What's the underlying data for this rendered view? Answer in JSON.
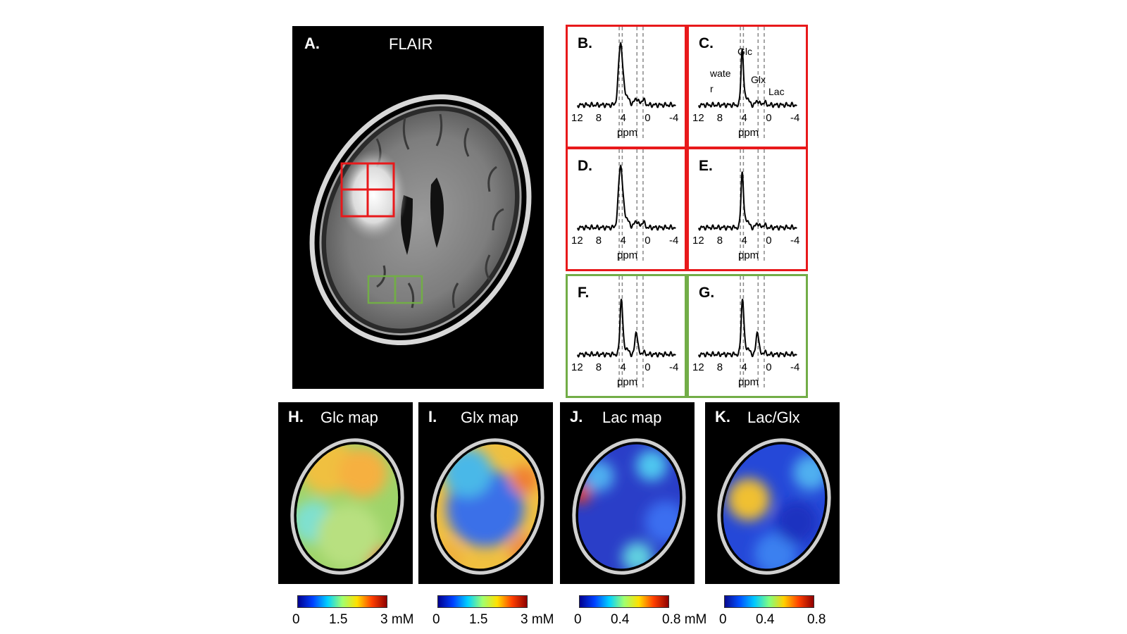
{
  "panel_a": {
    "label": "A.",
    "title": "FLAIR"
  },
  "spectra": [
    {
      "label": "B.",
      "roi": "red",
      "ticks": [
        "12",
        "8",
        "4",
        "0",
        "-4"
      ],
      "xlabel": "ppm",
      "shape": "tumor"
    },
    {
      "label": "C.",
      "roi": "red",
      "ticks": [
        "12",
        "8",
        "4",
        "0",
        "-4"
      ],
      "xlabel": "ppm",
      "shape": "tumor_sharp",
      "annotations": {
        "water_1": "wate",
        "water_2": "r",
        "glc": "Glc",
        "glx": "Glx",
        "lac": "Lac"
      }
    },
    {
      "label": "D.",
      "roi": "red",
      "ticks": [
        "12",
        "8",
        "4",
        "0",
        "-4"
      ],
      "xlabel": "ppm",
      "shape": "tumor"
    },
    {
      "label": "E.",
      "roi": "red",
      "ticks": [
        "12",
        "8",
        "4",
        "0",
        "-4"
      ],
      "xlabel": "ppm",
      "shape": "tumor_sharp"
    },
    {
      "label": "F.",
      "roi": "green",
      "ticks": [
        "12",
        "8",
        "4",
        "0",
        "-4"
      ],
      "xlabel": "ppm",
      "shape": "normal"
    },
    {
      "label": "G.",
      "roi": "green",
      "ticks": [
        "12",
        "8",
        "4",
        "0",
        "-4"
      ],
      "xlabel": "ppm",
      "shape": "normal"
    }
  ],
  "maps": [
    {
      "label": "H.",
      "title": "Glc map",
      "colorbar": {
        "min": "0",
        "mid": "1.5",
        "max": "3 mM"
      }
    },
    {
      "label": "I.",
      "title": "Glx map",
      "colorbar": {
        "min": "0",
        "mid": "1.5",
        "max": "3 mM"
      }
    },
    {
      "label": "J.",
      "title": "Lac map",
      "colorbar": {
        "min": "0",
        "mid": "0.4",
        "max": "0.8 mM"
      }
    },
    {
      "label": "K.",
      "title": "Lac/Glx",
      "colorbar": {
        "min": "0",
        "mid": "0.4",
        "max": "0.8"
      }
    }
  ],
  "colors": {
    "red_roi": "#e8191b",
    "green_roi": "#72ad47"
  },
  "spectrum_axis": {
    "x_range_ppm": [
      12,
      -4
    ],
    "dashed_lines_ppm": [
      5.2,
      4.7,
      2.3,
      1.3
    ]
  }
}
